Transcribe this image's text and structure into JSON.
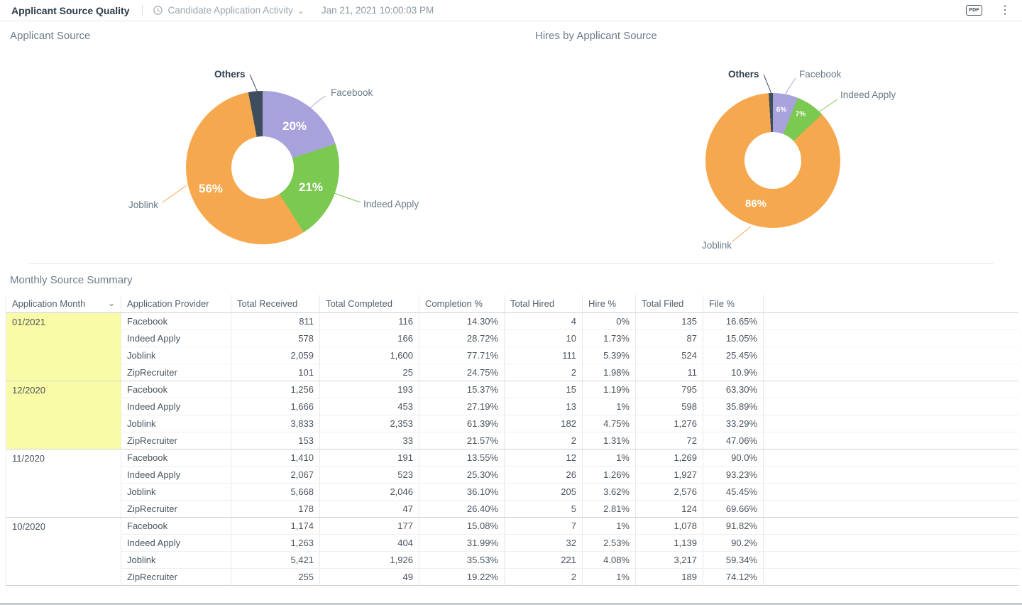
{
  "topbar": {
    "title": "Applicant Source Quality",
    "report_selector": "Candidate Application Activity",
    "timestamp": "Jan 21, 2021 10:00:03 PM",
    "pdf_label": "PDF"
  },
  "chart_data": [
    {
      "type": "pie",
      "title": "Applicant Source",
      "slices": [
        {
          "label": "Facebook",
          "value": 20,
          "pct_label": "20%",
          "color": "#a8a2dc"
        },
        {
          "label": "Indeed Apply",
          "value": 21,
          "pct_label": "21%",
          "color": "#7cc952"
        },
        {
          "label": "Joblink",
          "value": 56,
          "pct_label": "56%",
          "color": "#f6a84e"
        },
        {
          "label": "Others",
          "value": 3,
          "pct_label": "",
          "color": "#3e4d5d"
        }
      ],
      "legend_position": "callout",
      "unit": "%"
    },
    {
      "type": "pie",
      "title": "Hires by Applicant Source",
      "slices": [
        {
          "label": "Facebook",
          "value": 6,
          "pct_label": "6%",
          "color": "#a8a2dc"
        },
        {
          "label": "Indeed Apply",
          "value": 7,
          "pct_label": "7%",
          "color": "#7cc952"
        },
        {
          "label": "Joblink",
          "value": 86,
          "pct_label": "86%",
          "color": "#f6a84e"
        },
        {
          "label": "Others",
          "value": 1,
          "pct_label": "",
          "color": "#3e4d5d"
        }
      ],
      "legend_position": "callout",
      "unit": "%"
    }
  ],
  "table": {
    "title": "Monthly Source Summary",
    "columns": [
      "Application Month",
      "Application Provider",
      "Total Received",
      "Total Completed",
      "Completion %",
      "Total Hired",
      "Hire %",
      "Total Filed",
      "File %"
    ],
    "groups": [
      {
        "month": "01/2021",
        "highlight": true,
        "rows": [
          [
            "Facebook",
            "811",
            "116",
            "14.30%",
            "4",
            "0%",
            "135",
            "16.65%"
          ],
          [
            "Indeed Apply",
            "578",
            "166",
            "28.72%",
            "10",
            "1.73%",
            "87",
            "15.05%"
          ],
          [
            "Joblink",
            "2,059",
            "1,600",
            "77.71%",
            "111",
            "5.39%",
            "524",
            "25.45%"
          ],
          [
            "ZipRecruiter",
            "101",
            "25",
            "24.75%",
            "2",
            "1.98%",
            "11",
            "10.9%"
          ]
        ]
      },
      {
        "month": "12/2020",
        "highlight": true,
        "rows": [
          [
            "Facebook",
            "1,256",
            "193",
            "15.37%",
            "15",
            "1.19%",
            "795",
            "63.30%"
          ],
          [
            "Indeed Apply",
            "1,666",
            "453",
            "27.19%",
            "13",
            "1%",
            "598",
            "35.89%"
          ],
          [
            "Joblink",
            "3,833",
            "2,353",
            "61.39%",
            "182",
            "4.75%",
            "1,276",
            "33.29%"
          ],
          [
            "ZipRecruiter",
            "153",
            "33",
            "21.57%",
            "2",
            "1.31%",
            "72",
            "47.06%"
          ]
        ]
      },
      {
        "month": "11/2020",
        "highlight": false,
        "rows": [
          [
            "Facebook",
            "1,410",
            "191",
            "13.55%",
            "12",
            "1%",
            "1,269",
            "90.0%"
          ],
          [
            "Indeed Apply",
            "2,067",
            "523",
            "25.30%",
            "26",
            "1.26%",
            "1,927",
            "93.23%"
          ],
          [
            "Joblink",
            "5,668",
            "2,046",
            "36.10%",
            "205",
            "3.62%",
            "2,576",
            "45.45%"
          ],
          [
            "ZipRecruiter",
            "178",
            "47",
            "26.40%",
            "5",
            "2.81%",
            "124",
            "69.66%"
          ]
        ]
      },
      {
        "month": "10/2020",
        "highlight": false,
        "rows": [
          [
            "Facebook",
            "1,174",
            "177",
            "15.08%",
            "7",
            "1%",
            "1,078",
            "91.82%"
          ],
          [
            "Indeed Apply",
            "1,263",
            "404",
            "31.99%",
            "32",
            "2.53%",
            "1,139",
            "90.2%"
          ],
          [
            "Joblink",
            "5,421",
            "1,926",
            "35.53%",
            "221",
            "4.08%",
            "3,217",
            "59.34%"
          ],
          [
            "ZipRecruiter",
            "255",
            "49",
            "19.22%",
            "2",
            "1%",
            "189",
            "74.12%"
          ]
        ]
      }
    ]
  }
}
